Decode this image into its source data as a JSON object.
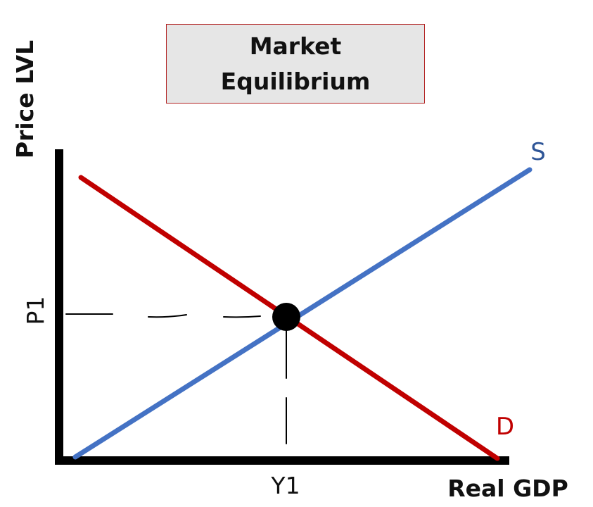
{
  "title": {
    "line1": "Market",
    "line2": "Equilibrium"
  },
  "axes": {
    "y_label": "Price LVL",
    "x_label": "Real GDP"
  },
  "curves": {
    "supply_label": "S",
    "demand_label": "D",
    "supply_color": "#4472c4",
    "demand_color": "#c00000"
  },
  "equilibrium": {
    "price_label": "P1",
    "quantity_label": "Y1"
  },
  "colors": {
    "axis": "#000000",
    "title_bg": "#e6e6e6",
    "title_border": "#b22222"
  }
}
